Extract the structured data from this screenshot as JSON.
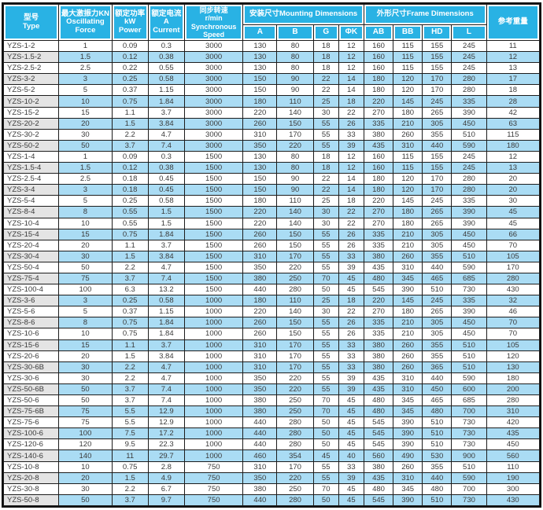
{
  "colors": {
    "header_bg": "#29b2e4",
    "header_text": "#ffffff",
    "alt_row_bg": "#aadcf4",
    "alt_type_cell_bg": "#e4e4e4",
    "grid_line": "#1c1c1c",
    "body_text": "#3a3a3a"
  },
  "table": {
    "header": {
      "type": "型号\nType",
      "force": "最大激振力KN\nOscillating\nForce",
      "power": "额定功率\nkW\nPower",
      "current": "额定电流\nA\nCurrent",
      "speed": "同步转速\nr/min\nSynchronous\nSpeed",
      "mounting_group": "安装尺寸Mounting Dimensions",
      "frame_group": "外形尺寸Frame Dimensions",
      "weight": "参考重量",
      "sub": [
        "A",
        "B",
        "G",
        "ΦK",
        "AB",
        "BB",
        "HD",
        "L"
      ]
    },
    "rows": [
      [
        "YZS-1-2",
        "1",
        "0.09",
        "0.3",
        "3000",
        "130",
        "80",
        "18",
        "12",
        "160",
        "115",
        "155",
        "245",
        "11"
      ],
      [
        "YZS-1.5-2",
        "1.5",
        "0.12",
        "0.38",
        "3000",
        "130",
        "80",
        "18",
        "12",
        "160",
        "115",
        "155",
        "245",
        "12"
      ],
      [
        "YZS-2.5-2",
        "2.5",
        "0.22",
        "0.55",
        "3000",
        "130",
        "80",
        "18",
        "12",
        "160",
        "115",
        "155",
        "245",
        "13"
      ],
      [
        "YZS-3-2",
        "3",
        "0.25",
        "0.58",
        "3000",
        "150",
        "90",
        "22",
        "14",
        "180",
        "120",
        "170",
        "280",
        "17"
      ],
      [
        "YZS-5-2",
        "5",
        "0.37",
        "1.15",
        "3000",
        "150",
        "90",
        "22",
        "14",
        "180",
        "120",
        "170",
        "280",
        "18"
      ],
      [
        "YZS-10-2",
        "10",
        "0.75",
        "1.84",
        "3000",
        "180",
        "110",
        "25",
        "18",
        "220",
        "145",
        "245",
        "335",
        "28"
      ],
      [
        "YZS-15-2",
        "15",
        "1.1",
        "3.7",
        "3000",
        "220",
        "140",
        "30",
        "22",
        "270",
        "180",
        "265",
        "390",
        "42"
      ],
      [
        "YZS-20-2",
        "20",
        "1.5",
        "3.84",
        "3000",
        "260",
        "150",
        "55",
        "26",
        "335",
        "210",
        "305",
        "450",
        "63"
      ],
      [
        "YZS-30-2",
        "30",
        "2.2",
        "4.7",
        "3000",
        "310",
        "170",
        "55",
        "33",
        "380",
        "260",
        "355",
        "510",
        "115"
      ],
      [
        "YZS-50-2",
        "50",
        "3.7",
        "7.4",
        "3000",
        "350",
        "220",
        "55",
        "39",
        "435",
        "310",
        "440",
        "590",
        "180"
      ],
      [
        "YZS-1-4",
        "1",
        "0.09",
        "0.3",
        "1500",
        "130",
        "80",
        "18",
        "12",
        "160",
        "115",
        "155",
        "245",
        "12"
      ],
      [
        "YZS-1.5-4",
        "1.5",
        "0.12",
        "0.38",
        "1500",
        "130",
        "80",
        "18",
        "12",
        "160",
        "115",
        "155",
        "245",
        "13"
      ],
      [
        "YZS-2.5-4",
        "2.5",
        "0.18",
        "0.45",
        "1500",
        "150",
        "90",
        "22",
        "14",
        "180",
        "120",
        "170",
        "280",
        "20"
      ],
      [
        "YZS-3-4",
        "3",
        "0.18",
        "0.45",
        "1500",
        "150",
        "90",
        "22",
        "14",
        "180",
        "120",
        "170",
        "280",
        "20"
      ],
      [
        "YZS-5-4",
        "5",
        "0.25",
        "0.58",
        "1500",
        "180",
        "110",
        "25",
        "18",
        "220",
        "145",
        "245",
        "335",
        "30"
      ],
      [
        "YZS-8-4",
        "8",
        "0.55",
        "1.5",
        "1500",
        "220",
        "140",
        "30",
        "22",
        "270",
        "180",
        "265",
        "390",
        "45"
      ],
      [
        "YZS-10-4",
        "10",
        "0.55",
        "1.5",
        "1500",
        "220",
        "140",
        "30",
        "22",
        "270",
        "180",
        "265",
        "390",
        "45"
      ],
      [
        "YZS-15-4",
        "15",
        "0.75",
        "1.84",
        "1500",
        "260",
        "150",
        "55",
        "26",
        "335",
        "210",
        "305",
        "450",
        "66"
      ],
      [
        "YZS-20-4",
        "20",
        "1.1",
        "3.7",
        "1500",
        "260",
        "150",
        "55",
        "26",
        "335",
        "210",
        "305",
        "450",
        "70"
      ],
      [
        "YZS-30-4",
        "30",
        "1.5",
        "3.84",
        "1500",
        "310",
        "170",
        "55",
        "33",
        "380",
        "260",
        "355",
        "510",
        "105"
      ],
      [
        "YZS-50-4",
        "50",
        "2.2",
        "4.7",
        "1500",
        "350",
        "220",
        "55",
        "39",
        "435",
        "310",
        "440",
        "590",
        "170"
      ],
      [
        "YZS-75-4",
        "75",
        "3.7",
        "7.4",
        "1500",
        "380",
        "250",
        "70",
        "45",
        "480",
        "345",
        "465",
        "685",
        "280"
      ],
      [
        "YZS-100-4",
        "100",
        "6.3",
        "13.2",
        "1500",
        "440",
        "280",
        "50",
        "45",
        "545",
        "390",
        "510",
        "730",
        "430"
      ],
      [
        "YZS-3-6",
        "3",
        "0.25",
        "0.58",
        "1000",
        "180",
        "110",
        "25",
        "18",
        "220",
        "145",
        "245",
        "335",
        "32"
      ],
      [
        "YZS-5-6",
        "5",
        "0.37",
        "1.15",
        "1000",
        "220",
        "140",
        "30",
        "22",
        "270",
        "180",
        "265",
        "390",
        "46"
      ],
      [
        "YZS-8-6",
        "8",
        "0.75",
        "1.84",
        "1000",
        "260",
        "150",
        "55",
        "26",
        "335",
        "210",
        "305",
        "450",
        "70"
      ],
      [
        "YZS-10-6",
        "10",
        "0.75",
        "1.84",
        "1000",
        "260",
        "150",
        "55",
        "26",
        "335",
        "210",
        "305",
        "450",
        "70"
      ],
      [
        "YZS-15-6",
        "15",
        "1.1",
        "3.7",
        "1000",
        "310",
        "170",
        "55",
        "33",
        "380",
        "260",
        "355",
        "510",
        "105"
      ],
      [
        "YZS-20-6",
        "20",
        "1.5",
        "3.84",
        "1000",
        "310",
        "170",
        "55",
        "33",
        "380",
        "260",
        "355",
        "510",
        "120"
      ],
      [
        "YZS-30-6B",
        "30",
        "2.2",
        "4.7",
        "1000",
        "310",
        "170",
        "55",
        "33",
        "380",
        "260",
        "365",
        "510",
        "130"
      ],
      [
        "YZS-30-6",
        "30",
        "2.2",
        "4.7",
        "1000",
        "350",
        "220",
        "55",
        "39",
        "435",
        "310",
        "440",
        "590",
        "180"
      ],
      [
        "YZS-50-6B",
        "50",
        "3.7",
        "7.4",
        "1000",
        "350",
        "220",
        "55",
        "39",
        "435",
        "310",
        "450",
        "600",
        "200"
      ],
      [
        "YZS-50-6",
        "50",
        "3.7",
        "7.4",
        "1000",
        "380",
        "250",
        "70",
        "45",
        "480",
        "345",
        "465",
        "685",
        "280"
      ],
      [
        "YZS-75-6B",
        "75",
        "5.5",
        "12.9",
        "1000",
        "380",
        "250",
        "70",
        "45",
        "480",
        "345",
        "480",
        "700",
        "310"
      ],
      [
        "YZS-75-6",
        "75",
        "5.5",
        "12.9",
        "1000",
        "440",
        "280",
        "50",
        "45",
        "545",
        "390",
        "510",
        "730",
        "420"
      ],
      [
        "YZS-100-6",
        "100",
        "7.5",
        "17.2",
        "1000",
        "440",
        "280",
        "50",
        "45",
        "545",
        "390",
        "510",
        "730",
        "435"
      ],
      [
        "YZS-120-6",
        "120",
        "9.5",
        "22.3",
        "1000",
        "440",
        "280",
        "50",
        "45",
        "545",
        "390",
        "510",
        "730",
        "450"
      ],
      [
        "YZS-140-6",
        "140",
        "11",
        "29.7",
        "1000",
        "460",
        "354",
        "45",
        "40",
        "560",
        "490",
        "530",
        "900",
        "560"
      ],
      [
        "YZS-10-8",
        "10",
        "0.75",
        "2.8",
        "750",
        "310",
        "170",
        "55",
        "33",
        "380",
        "260",
        "355",
        "510",
        "110"
      ],
      [
        "YZS-20-8",
        "20",
        "1.5",
        "4.9",
        "750",
        "350",
        "220",
        "55",
        "39",
        "435",
        "310",
        "440",
        "590",
        "190"
      ],
      [
        "YZS-30-8",
        "30",
        "2.2",
        "6.7",
        "750",
        "380",
        "250",
        "70",
        "45",
        "480",
        "345",
        "480",
        "700",
        "300"
      ],
      [
        "YZS-50-8",
        "50",
        "3.7",
        "9.7",
        "750",
        "440",
        "280",
        "50",
        "45",
        "545",
        "390",
        "510",
        "730",
        "430"
      ]
    ]
  }
}
